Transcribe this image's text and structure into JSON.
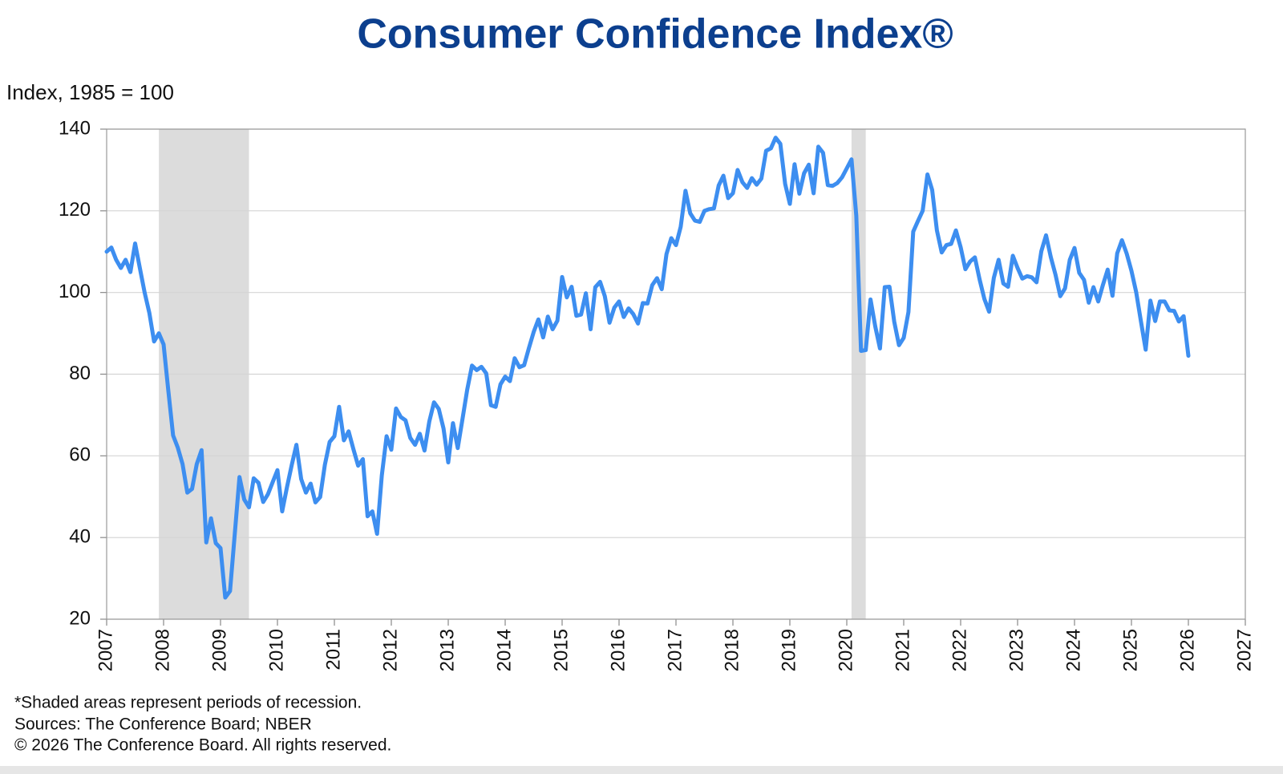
{
  "chart_data": {
    "type": "line",
    "title": "Consumer Confidence Index®",
    "y_label": "Index, 1985 = 100",
    "notes": [
      "*Shaded areas represent periods of recession.",
      "Sources:  The Conference Board;  NBER",
      "© 2026 The Conference Board. All rights reserved."
    ],
    "color": "#3d8ef0",
    "shade_color": "#dcdcdc",
    "shaded_ranges": [
      [
        2007.917,
        2009.5
      ],
      [
        2020.083,
        2020.333
      ]
    ],
    "xlim": [
      2007,
      2027
    ],
    "xticks": [
      2007,
      2008,
      2009,
      2010,
      2011,
      2012,
      2013,
      2014,
      2015,
      2016,
      2017,
      2018,
      2019,
      2020,
      2021,
      2022,
      2023,
      2024,
      2025,
      2026,
      2027
    ],
    "ylim": [
      20,
      140
    ],
    "yticks": [
      20,
      40,
      60,
      80,
      100,
      120,
      140
    ],
    "grid": true,
    "x": [
      2007,
      2007.083,
      2007.167,
      2007.25,
      2007.333,
      2007.417,
      2007.5,
      2007.583,
      2007.667,
      2007.75,
      2007.833,
      2007.917,
      2008,
      2008.083,
      2008.167,
      2008.25,
      2008.333,
      2008.417,
      2008.5,
      2008.583,
      2008.667,
      2008.75,
      2008.833,
      2008.917,
      2009,
      2009.083,
      2009.167,
      2009.25,
      2009.333,
      2009.417,
      2009.5,
      2009.583,
      2009.667,
      2009.75,
      2009.833,
      2009.917,
      2010,
      2010.083,
      2010.167,
      2010.25,
      2010.333,
      2010.417,
      2010.5,
      2010.583,
      2010.667,
      2010.75,
      2010.833,
      2010.917,
      2011,
      2011.083,
      2011.167,
      2011.25,
      2011.333,
      2011.417,
      2011.5,
      2011.583,
      2011.667,
      2011.75,
      2011.833,
      2011.917,
      2012,
      2012.083,
      2012.167,
      2012.25,
      2012.333,
      2012.417,
      2012.5,
      2012.583,
      2012.667,
      2012.75,
      2012.833,
      2012.917,
      2013,
      2013.083,
      2013.167,
      2013.25,
      2013.333,
      2013.417,
      2013.5,
      2013.583,
      2013.667,
      2013.75,
      2013.833,
      2013.917,
      2014,
      2014.083,
      2014.167,
      2014.25,
      2014.333,
      2014.417,
      2014.5,
      2014.583,
      2014.667,
      2014.75,
      2014.833,
      2014.917,
      2015,
      2015.083,
      2015.167,
      2015.25,
      2015.333,
      2015.417,
      2015.5,
      2015.583,
      2015.667,
      2015.75,
      2015.833,
      2015.917,
      2016,
      2016.083,
      2016.167,
      2016.25,
      2016.333,
      2016.417,
      2016.5,
      2016.583,
      2016.667,
      2016.75,
      2016.833,
      2016.917,
      2017,
      2017.083,
      2017.167,
      2017.25,
      2017.333,
      2017.417,
      2017.5,
      2017.583,
      2017.667,
      2017.75,
      2017.833,
      2017.917,
      2018,
      2018.083,
      2018.167,
      2018.25,
      2018.333,
      2018.417,
      2018.5,
      2018.583,
      2018.667,
      2018.75,
      2018.833,
      2018.917,
      2019,
      2019.083,
      2019.167,
      2019.25,
      2019.333,
      2019.417,
      2019.5,
      2019.583,
      2019.667,
      2019.75,
      2019.833,
      2019.917,
      2020,
      2020.083,
      2020.167,
      2020.25,
      2020.333,
      2020.417,
      2020.5,
      2020.583,
      2020.667,
      2020.75,
      2020.833,
      2020.917,
      2021,
      2021.083,
      2021.167,
      2021.25,
      2021.333,
      2021.417,
      2021.5,
      2021.583,
      2021.667,
      2021.75,
      2021.833,
      2021.917,
      2022,
      2022.083,
      2022.167,
      2022.25,
      2022.333,
      2022.417,
      2022.5,
      2022.583,
      2022.667,
      2022.75,
      2022.833,
      2022.917,
      2023,
      2023.083,
      2023.167,
      2023.25,
      2023.333,
      2023.417,
      2023.5,
      2023.583,
      2023.667,
      2023.75,
      2023.833,
      2023.917,
      2024,
      2024.083,
      2024.167,
      2024.25,
      2024.333,
      2024.417,
      2024.5,
      2024.583,
      2024.667,
      2024.75,
      2024.833,
      2024.917,
      2025,
      2025.083,
      2025.167,
      2025.25,
      2025.333,
      2025.417,
      2025.5,
      2025.583,
      2025.667,
      2025.75,
      2025.833,
      2025.917,
      2026
    ],
    "values": [
      110,
      111,
      108,
      106,
      108,
      105,
      112,
      106,
      100,
      95,
      88,
      90,
      87.3,
      76,
      65,
      62,
      58,
      51,
      51.9,
      58,
      61.4,
      38.8,
      44.7,
      38.6,
      37.4,
      25.3,
      26.9,
      40.8,
      54.8,
      49.3,
      47.4,
      54.5,
      53.4,
      48.7,
      50.6,
      53.6,
      56.5,
      46.4,
      52.3,
      57.7,
      62.7,
      54.3,
      51,
      53.2,
      48.6,
      49.9,
      57.8,
      63.4,
      64.8,
      72,
      63.8,
      66,
      61.7,
      57.6,
      59.2,
      45.2,
      46.4,
      40.9,
      55.2,
      64.8,
      61.5,
      71.6,
      69.5,
      68.7,
      64.4,
      62.7,
      65.4,
      61.3,
      68.4,
      73.1,
      71.5,
      66.7,
      58.4,
      68,
      61.9,
      69,
      76.2,
      82.1,
      81,
      81.8,
      80.2,
      72.4,
      72,
      77.5,
      79.4,
      78.3,
      83.9,
      81.7,
      82.2,
      86.4,
      90.3,
      93.4,
      89,
      94.1,
      91,
      93.1,
      103.8,
      98.8,
      101.4,
      94.3,
      94.6,
      99.8,
      91,
      101.3,
      102.6,
      99.1,
      92.6,
      96.3,
      97.8,
      94,
      96.1,
      94.7,
      92.4,
      97.4,
      97.3,
      101.8,
      103.5,
      100.8,
      109.4,
      113.3,
      111.6,
      116.1,
      124.9,
      119.4,
      117.6,
      117.3,
      120,
      120.4,
      120.6,
      126.2,
      128.6,
      123.1,
      124.3,
      130,
      127,
      125.6,
      128,
      126.4,
      127.9,
      134.7,
      135.3,
      137.9,
      136.4,
      126.6,
      121.7,
      131.4,
      124.2,
      129.2,
      131.3,
      124.3,
      135.7,
      134.2,
      126.3,
      126.1,
      126.8,
      128.2,
      130.4,
      132.6,
      118.8,
      85.7,
      85.9,
      98.3,
      91.7,
      86.3,
      101.3,
      101.4,
      92.9,
      87.1,
      88.9,
      95.2,
      114.9,
      117.5,
      120,
      128.9,
      125.1,
      115.2,
      109.8,
      111.6,
      111.9,
      115.2,
      111.1,
      105.7,
      107.6,
      108.6,
      103.2,
      98.4,
      95.3,
      103.6,
      108,
      102.2,
      101.4,
      109,
      106,
      103.4,
      104,
      103.7,
      102.5,
      110.1,
      114,
      108.7,
      104.3,
      99.1,
      101,
      108,
      110.9,
      104.8,
      103.1,
      97.5,
      101.3,
      97.8,
      101.9,
      105.6,
      99.2,
      109.6,
      112.8,
      109.5,
      105.3,
      100.1,
      92.9,
      86,
      98,
      93,
      97.8,
      97.8,
      95.6,
      95.5,
      92.9,
      94.2,
      84.5
    ]
  }
}
